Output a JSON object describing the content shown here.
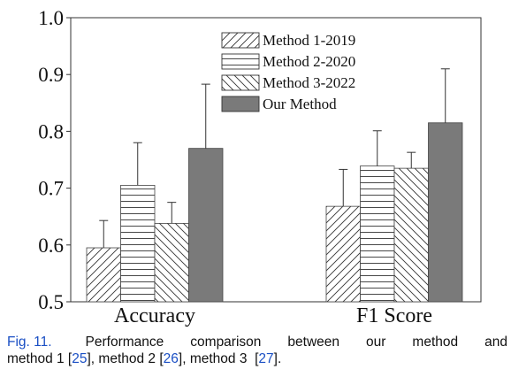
{
  "chart_data": {
    "type": "bar",
    "categories": [
      "Accuracy",
      "F1 Score"
    ],
    "ylim": [
      0.5,
      1.0
    ],
    "yticks": [
      "0.5",
      "0.6",
      "0.7",
      "0.8",
      "0.9",
      "1.0"
    ],
    "grid": false,
    "legend_position": "top-right",
    "series": [
      {
        "name": "Method 1-2019",
        "pattern": "diagonal-up",
        "values": [
          0.595,
          0.668
        ],
        "errors": [
          0.048,
          0.065
        ]
      },
      {
        "name": "Method 2-2020",
        "pattern": "horizontal",
        "values": [
          0.705,
          0.739
        ],
        "errors": [
          0.075,
          0.062
        ]
      },
      {
        "name": "Method 3-2022",
        "pattern": "diagonal-down",
        "values": [
          0.638,
          0.735
        ],
        "errors": [
          0.037,
          0.028
        ]
      },
      {
        "name": "Our Method",
        "pattern": "solid",
        "color": "#7a7a7a",
        "values": [
          0.77,
          0.815
        ],
        "errors": [
          0.113,
          0.095
        ]
      }
    ]
  },
  "caption": {
    "fig_label": "Fig. 11.",
    "line1_text": "Performance comparison between our method and",
    "line2_parts": [
      {
        "t": "method 1 [",
        "ref": false
      },
      {
        "t": "25",
        "ref": true
      },
      {
        "t": "], method 2 [",
        "ref": false
      },
      {
        "t": "26",
        "ref": true
      },
      {
        "t": "], method 3  [",
        "ref": false
      },
      {
        "t": "27",
        "ref": true
      },
      {
        "t": "].",
        "ref": false
      }
    ]
  }
}
